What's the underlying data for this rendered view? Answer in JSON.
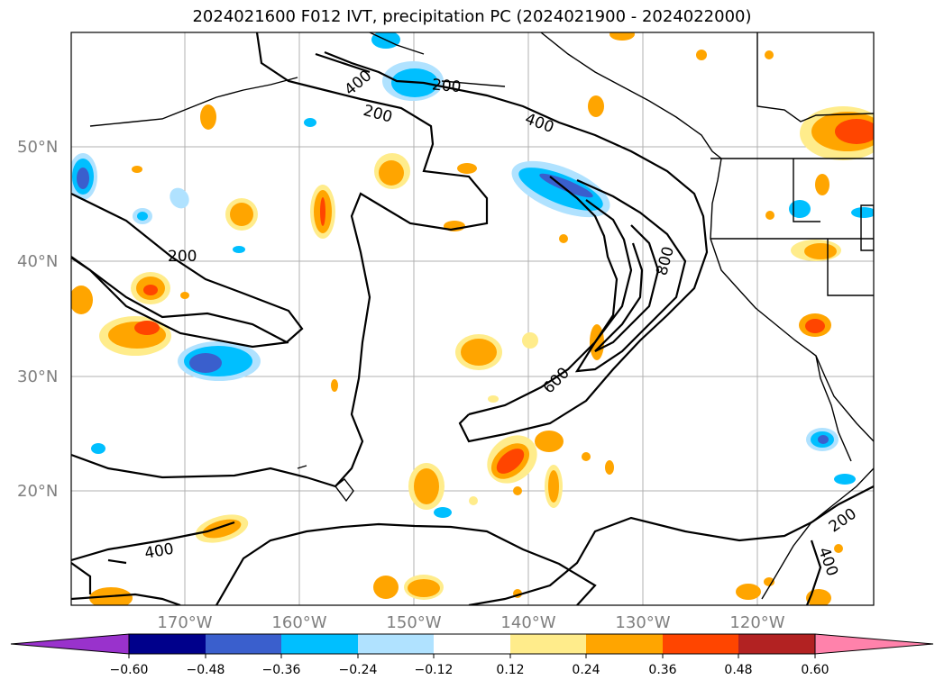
{
  "title": "2024021600 F012 IVT, precipitation PC (2024021900 - 2024022000)",
  "map": {
    "lat_labels": [
      "50°N",
      "40°N",
      "30°N",
      "20°N"
    ],
    "lon_labels": [
      "170°W",
      "160°W",
      "150°W",
      "140°W",
      "130°W",
      "120°W"
    ],
    "contour_labels": [
      "400",
      "200",
      "200",
      "400",
      "200",
      "800",
      "600",
      "400",
      "200",
      "400"
    ],
    "contour_color": "#000000",
    "grid": true,
    "land_outline_color": "#000000"
  },
  "colorbar": {
    "tick_labels": [
      "−0.60",
      "−0.48",
      "−0.36",
      "−0.24",
      "−0.12",
      "0.12",
      "0.24",
      "0.36",
      "0.48",
      "0.60"
    ],
    "colors": [
      "#9932cc",
      "#00008b",
      "#3a5fcd",
      "#00bfff",
      "#b0e2ff",
      "#ffffff",
      "#ffec8b",
      "#ffa500",
      "#ff4500",
      "#b22222",
      "#ff82ab"
    ]
  }
}
